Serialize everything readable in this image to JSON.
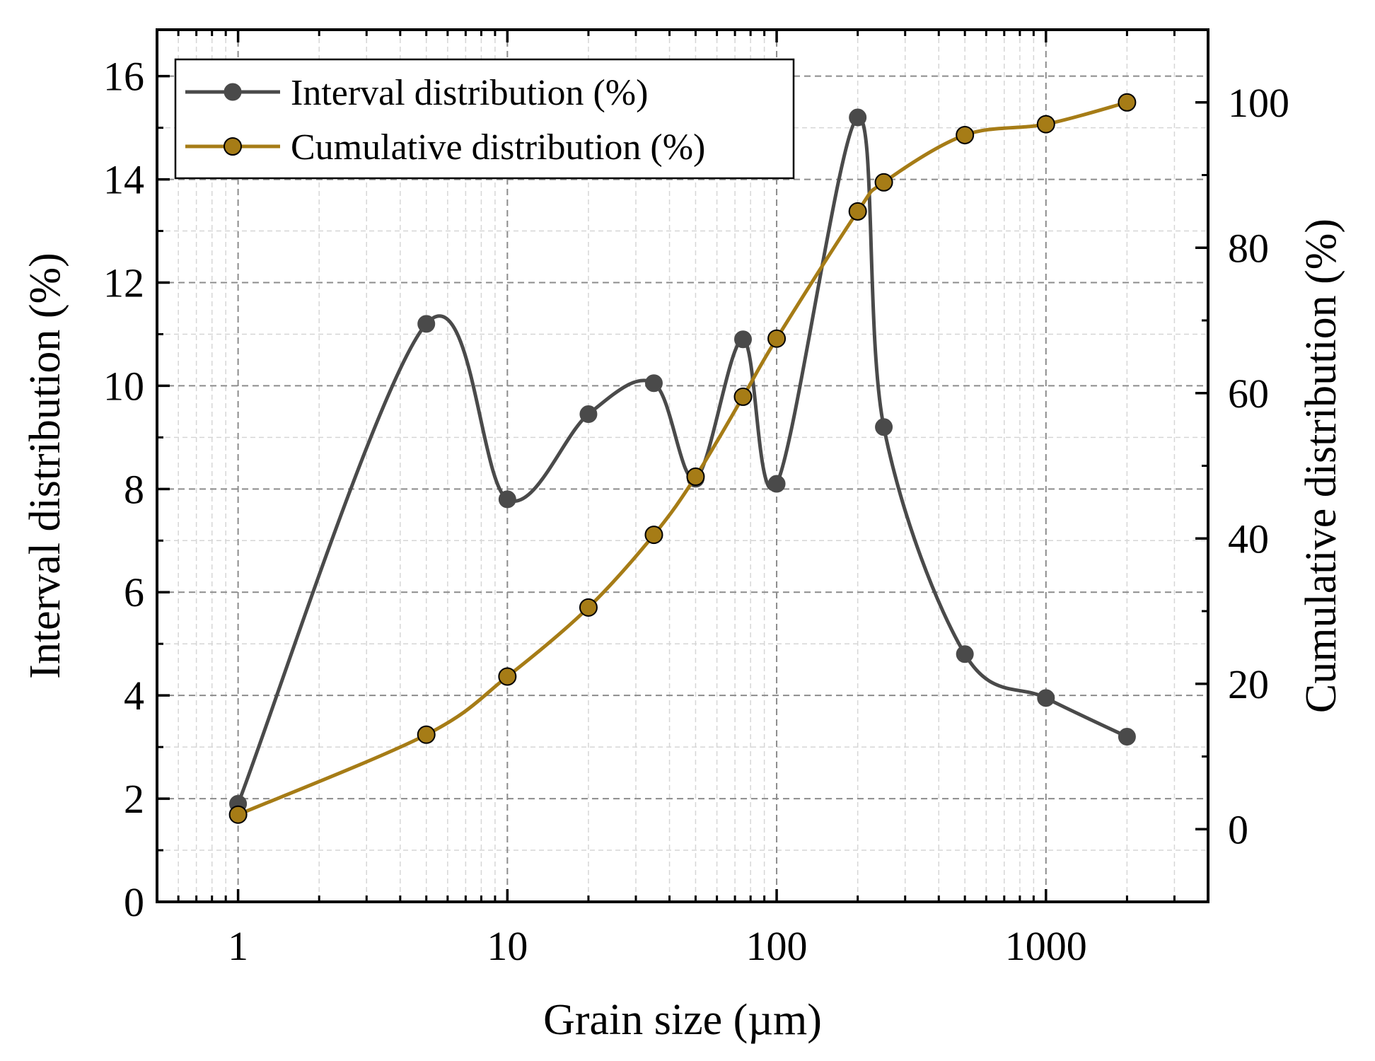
{
  "chart_data": {
    "type": "line",
    "xscale": "log",
    "xlabel": "Grain size (µm)",
    "ylabel": "Interval distribution (%)",
    "y2label": "Cumulative distribution (%)",
    "xlim": [
      0.5,
      4000
    ],
    "ylim": [
      0,
      16.9
    ],
    "y2lim": [
      -10,
      110
    ],
    "xticks": [
      1,
      10,
      100,
      1000
    ],
    "xtick_labels": [
      "1",
      "10",
      "100",
      "1000"
    ],
    "yticks": [
      0,
      2,
      4,
      6,
      8,
      10,
      12,
      14,
      16
    ],
    "ytick_labels": [
      "0",
      "2",
      "4",
      "6",
      "8",
      "10",
      "12",
      "14",
      "16"
    ],
    "y2ticks": [
      0,
      20,
      40,
      60,
      80,
      100
    ],
    "y2tick_labels": [
      "0",
      "20",
      "40",
      "60",
      "80",
      "100"
    ],
    "grid": true,
    "legend_position": "top-left",
    "series": [
      {
        "name": "Interval distribution (%)",
        "axis": "left",
        "color": "#4a4a4a",
        "x": [
          1,
          5,
          10,
          20,
          35,
          50,
          75,
          100,
          200,
          250,
          500,
          1000,
          2000
        ],
        "y": [
          1.9,
          11.2,
          7.8,
          9.45,
          10.05,
          8.2,
          10.9,
          8.1,
          15.2,
          9.2,
          4.8,
          3.95,
          3.2
        ]
      },
      {
        "name": "Cumulative distribution (%)",
        "axis": "right",
        "color": "#a67c16",
        "x": [
          1,
          5,
          10,
          20,
          35,
          50,
          75,
          100,
          200,
          250,
          500,
          1000,
          2000
        ],
        "y": [
          2,
          13,
          21,
          30.5,
          40.5,
          48.5,
          59.5,
          67.5,
          85,
          89,
          95.5,
          97,
          100
        ]
      }
    ]
  }
}
